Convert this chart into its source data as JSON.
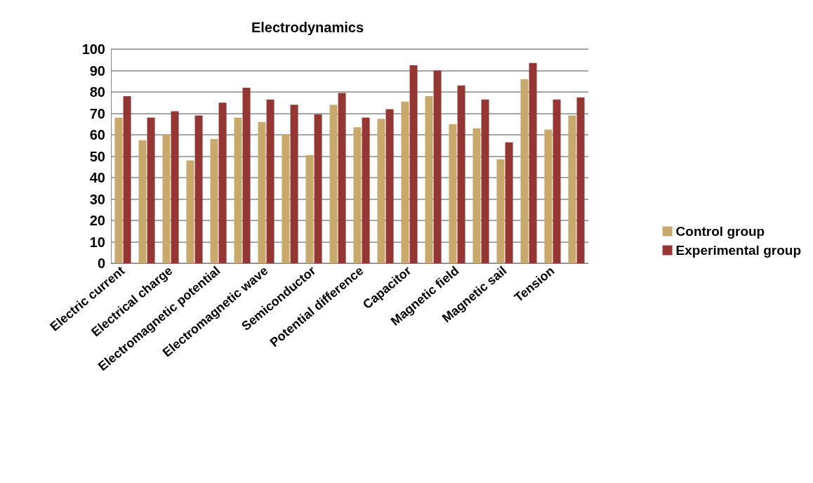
{
  "chart_data": {
    "type": "bar",
    "title": "Electrodynamics",
    "categories": [
      "Electric current",
      null,
      "Electrical charge",
      null,
      "Electromagnetic potential",
      null,
      "Electromagnetic wave",
      null,
      "Semiconductor",
      null,
      "Potential difference",
      null,
      "Capacitor",
      null,
      "Magnetic field",
      null,
      "Magnetic sail",
      null,
      "Tension",
      null
    ],
    "series": [
      {
        "name": "Control group",
        "color": "#c9a96b",
        "values": [
          68,
          57.5,
          60,
          48,
          58,
          68,
          66,
          60,
          50.5,
          74,
          63.5,
          67.5,
          75.5,
          78,
          65,
          63,
          48.5,
          86,
          62.5,
          69
        ]
      },
      {
        "name": "Experimental group",
        "color": "#943634",
        "values": [
          78,
          68,
          71,
          69,
          75,
          82,
          76.5,
          74,
          69.5,
          79.5,
          68,
          72,
          92.5,
          90,
          83,
          76.5,
          56.5,
          93.5,
          76.5,
          77.5
        ]
      }
    ],
    "ylim": [
      0,
      100
    ],
    "yticks": [
      0,
      10,
      20,
      30,
      40,
      50,
      60,
      70,
      80,
      90,
      100
    ],
    "grid": "y",
    "legend": "right"
  }
}
